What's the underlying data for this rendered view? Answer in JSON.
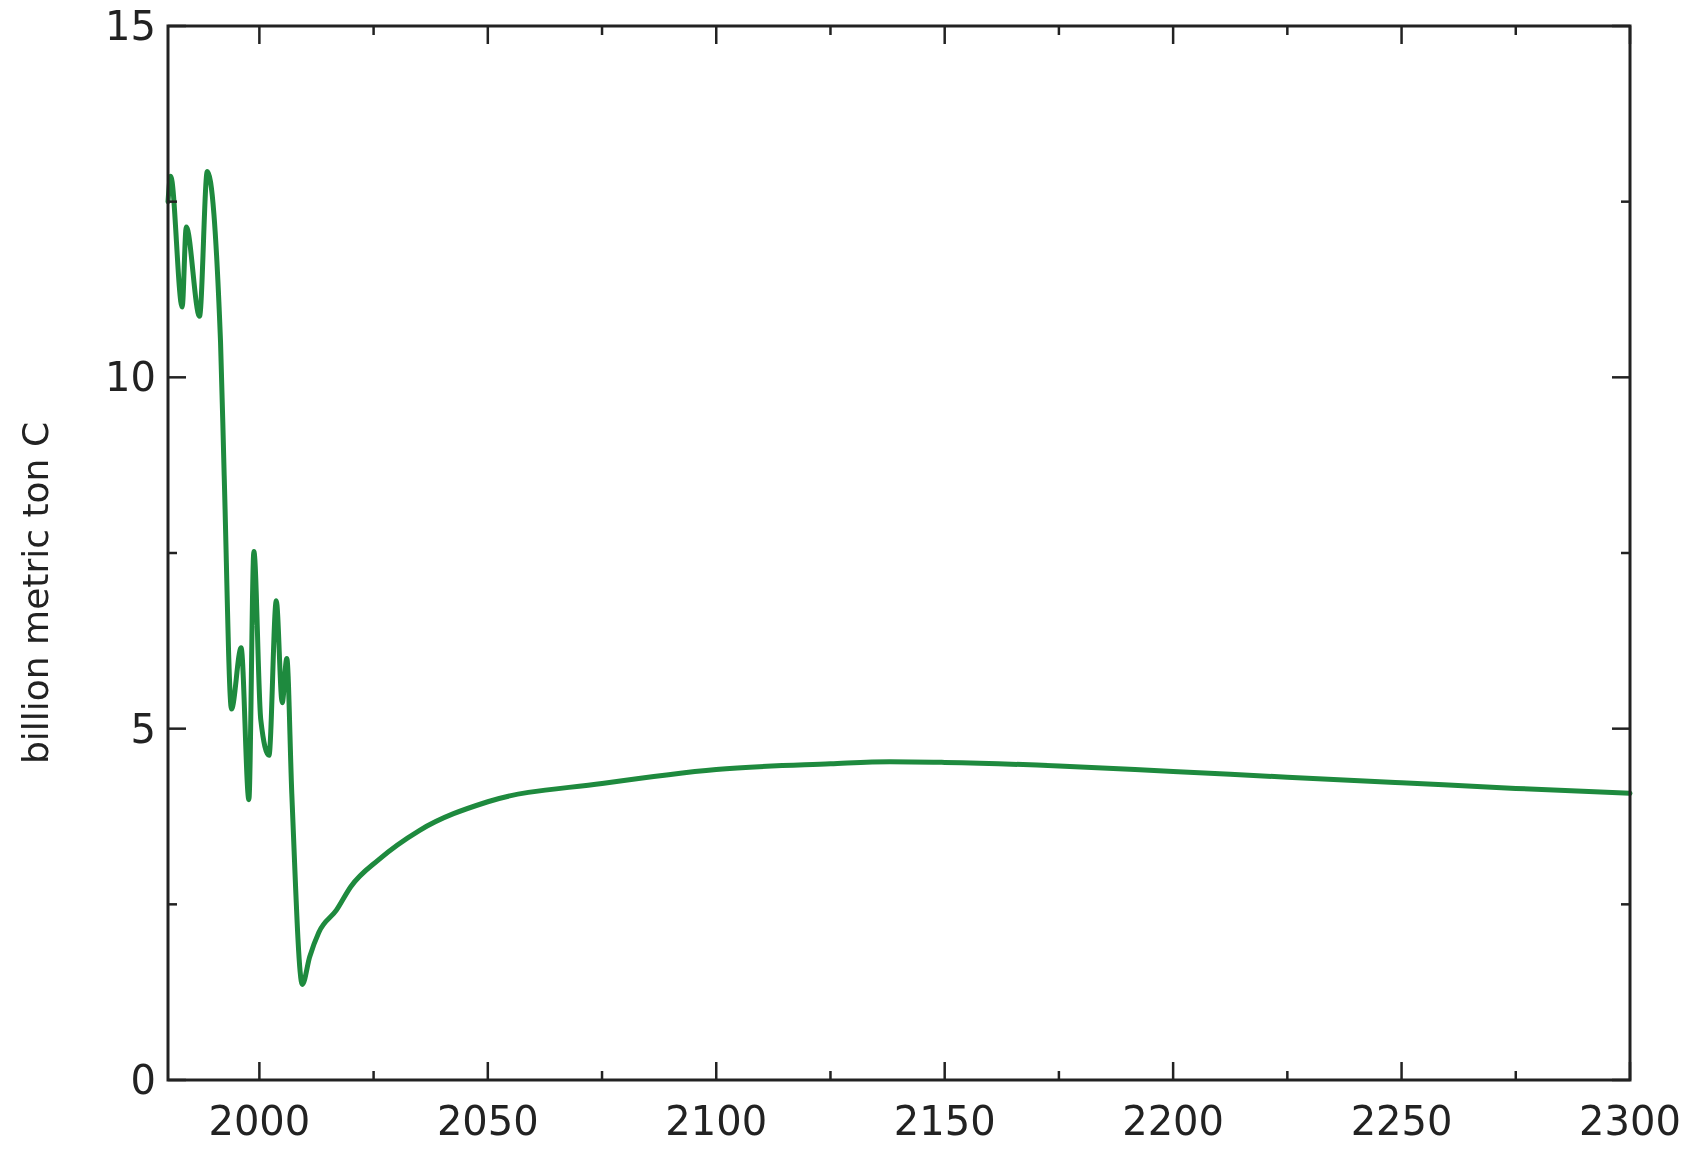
{
  "chart_data": {
    "type": "line",
    "ylabel": "billion metric ton C",
    "xlim": [
      1980,
      2300
    ],
    "ylim": [
      0,
      15
    ],
    "xticks": [
      2000,
      {
        "value": 2025,
        "label": null
      },
      2050,
      {
        "value": 2075,
        "label": null
      },
      2100,
      {
        "value": 2125,
        "label": null
      },
      2150,
      {
        "value": 2175,
        "label": null
      },
      2200,
      {
        "value": 2225,
        "label": null
      },
      2250,
      {
        "value": 2275,
        "label": null
      },
      2300
    ],
    "yticks": [
      0,
      {
        "value": 2.5,
        "label": null
      },
      5,
      {
        "value": 7.5,
        "label": null
      },
      10,
      {
        "value": 12.5,
        "label": null
      },
      15
    ],
    "grid": false,
    "line_style": "solid",
    "series": [
      {
        "color": "#1e8a3e",
        "x": [
          1980,
          1980.6,
          1983.1,
          1984,
          1986.9,
          1988.6,
          1991.5,
          1992.3,
          1993.9,
          1996,
          1997.7,
          1998.8,
          2000.3,
          2002.1,
          2003.7,
          2005,
          2006,
          2007.1,
          2009.4,
          2011,
          2013,
          2016.9,
          2020,
          2026.2,
          2035,
          2050,
          2075,
          2100,
          2125,
          2138,
          2150,
          2175,
          2200,
          2225,
          2250,
          2275,
          2300
        ],
        "values": [
          12.5,
          12.86,
          11.0,
          12.14,
          10.87,
          12.93,
          10.5,
          8.6,
          5.28,
          6.15,
          3.99,
          7.52,
          5.13,
          4.62,
          6.82,
          5.37,
          6.0,
          4.07,
          1.36,
          1.75,
          2.1,
          2.42,
          2.75,
          3.14,
          3.55,
          3.96,
          4.22,
          4.42,
          4.5,
          4.53,
          4.52,
          4.47,
          4.39,
          4.31,
          4.23,
          4.15,
          4.08
        ]
      }
    ]
  }
}
